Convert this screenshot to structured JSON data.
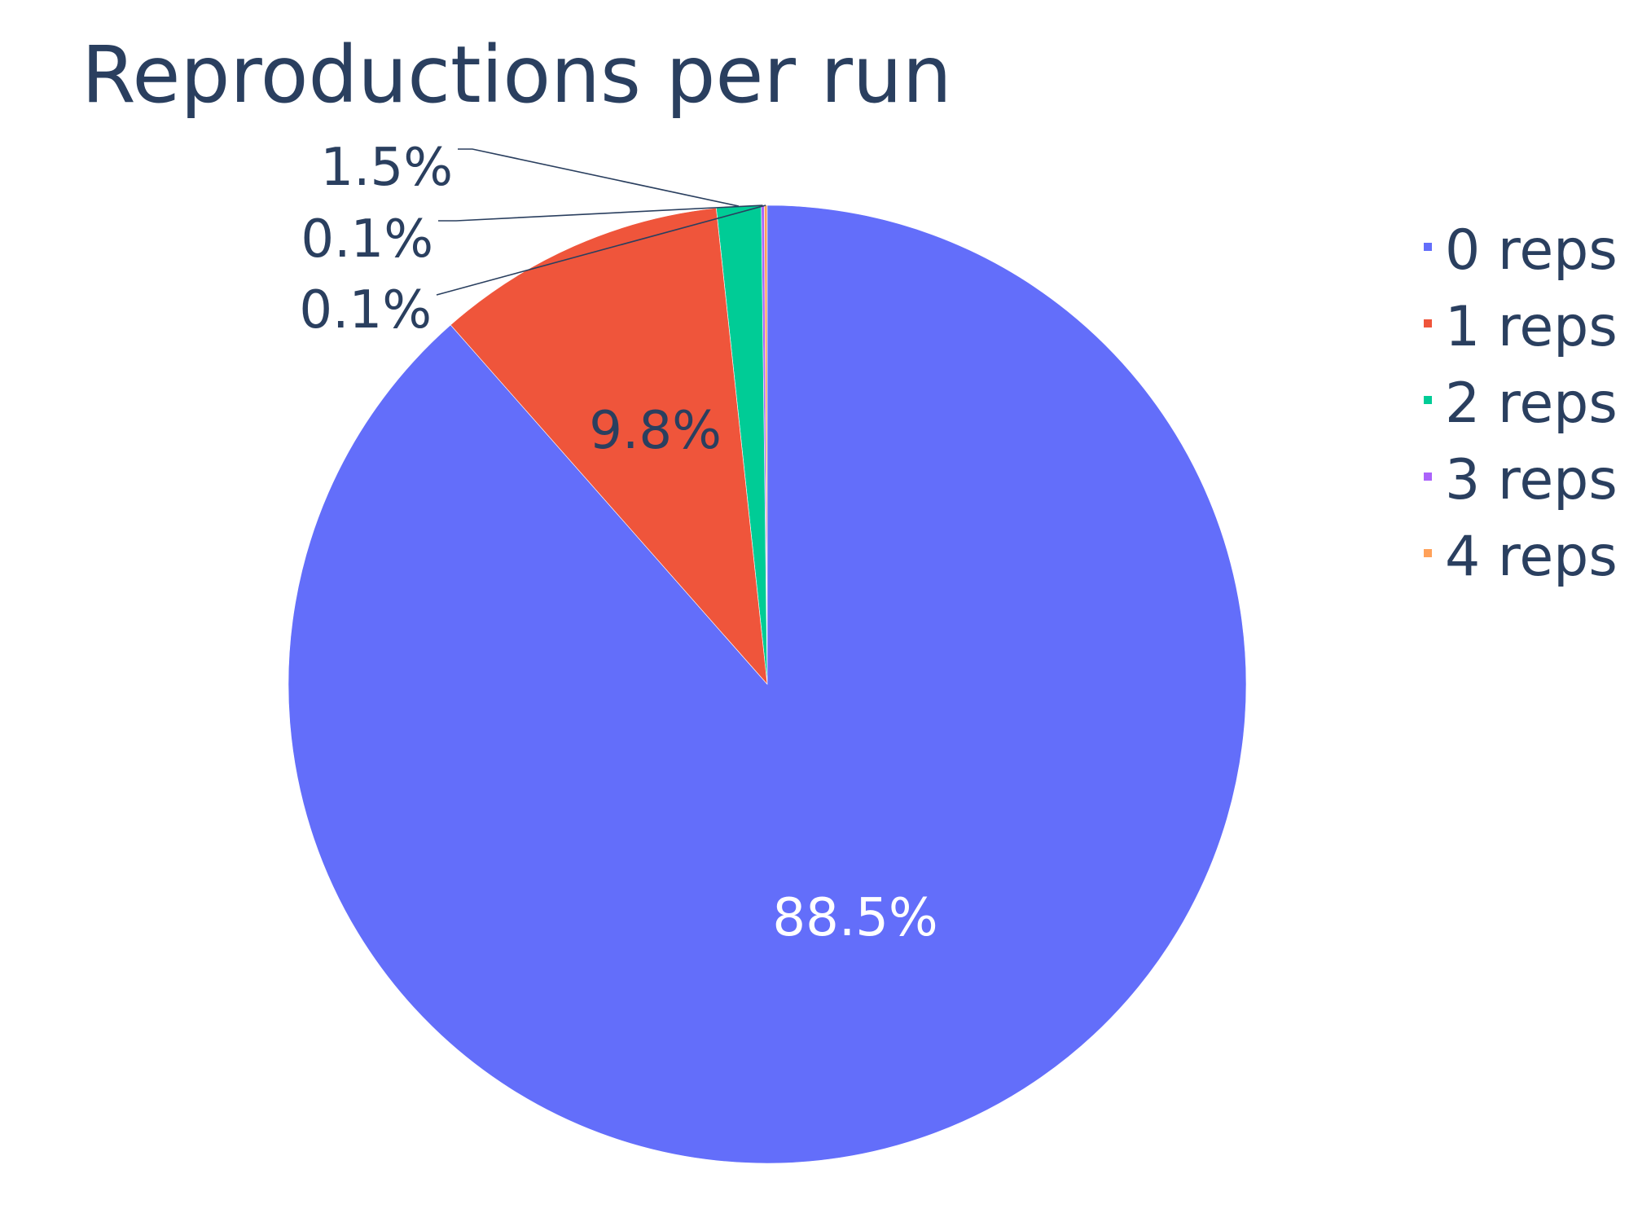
{
  "chart_data": {
    "type": "pie",
    "title": "Reproductions per run",
    "categories": [
      "0 reps",
      "1 reps",
      "2 reps",
      "3 reps",
      "4 reps"
    ],
    "values": [
      88.5,
      9.8,
      1.5,
      0.1,
      0.1
    ],
    "labels": [
      "88.5%",
      "9.8%",
      "1.5%",
      "0.1%",
      "0.1%"
    ],
    "colors": [
      "#636efa",
      "#ef553b",
      "#00cc96",
      "#ab63fa",
      "#ffa15a"
    ],
    "direction": "clockwise",
    "start": "top",
    "legend_position": "right"
  }
}
